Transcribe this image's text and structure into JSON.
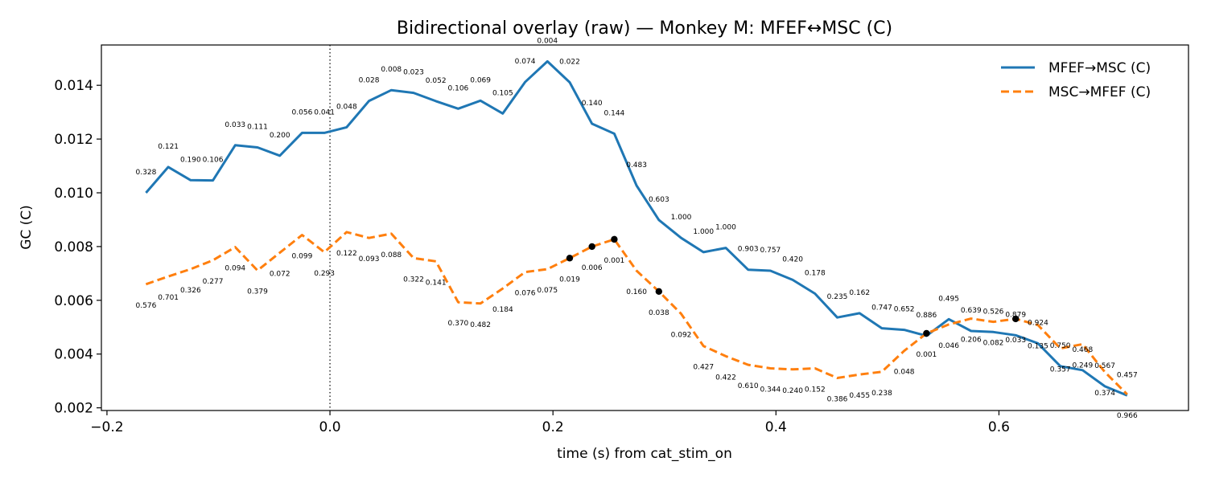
{
  "chart_data": {
    "type": "line",
    "title": "Bidirectional overlay (raw) — Monkey M: MFEF↔MSC (C)",
    "xlabel": "time (s) from cat_stim_on",
    "ylabel": "GC (C)",
    "xlim": [
      -0.205,
      0.77
    ],
    "ylim": [
      0.0019,
      0.0155
    ],
    "xticks": [
      -0.2,
      0.0,
      0.2,
      0.4,
      0.6
    ],
    "xtick_labels": [
      "−0.2",
      "0.0",
      "0.2",
      "0.4",
      "0.6"
    ],
    "yticks": [
      0.002,
      0.004,
      0.006,
      0.008,
      0.01,
      0.012,
      0.014
    ],
    "ytick_labels": [
      "0.002",
      "0.004",
      "0.006",
      "0.008",
      "0.010",
      "0.012",
      "0.014"
    ],
    "vline_x": 0.0,
    "legend_position": "top-right",
    "grid": false,
    "x": [
      -0.165,
      -0.145,
      -0.125,
      -0.105,
      -0.085,
      -0.065,
      -0.045,
      -0.025,
      -0.005,
      0.015,
      0.035,
      0.055,
      0.075,
      0.095,
      0.115,
      0.135,
      0.155,
      0.175,
      0.195,
      0.215,
      0.235,
      0.255,
      0.275,
      0.295,
      0.315,
      0.335,
      0.355,
      0.375,
      0.395,
      0.415,
      0.435,
      0.455,
      0.475,
      0.495,
      0.515,
      0.535,
      0.555,
      0.575,
      0.595,
      0.615,
      0.635,
      0.655,
      0.675,
      0.695,
      0.715
    ],
    "series": [
      {
        "name": "MFEF→MSC (C)",
        "color": "#1f77b4",
        "style": "solid",
        "values": [
          0.01,
          0.01096,
          0.01047,
          0.01046,
          0.01177,
          0.01169,
          0.01138,
          0.01223,
          0.01223,
          0.01244,
          0.01342,
          0.01382,
          0.01372,
          0.01341,
          0.01313,
          0.01343,
          0.01295,
          0.01412,
          0.01489,
          0.01411,
          0.01257,
          0.0122,
          0.01027,
          0.00899,
          0.00832,
          0.00779,
          0.00795,
          0.00714,
          0.0071,
          0.00676,
          0.00625,
          0.00536,
          0.00552,
          0.00496,
          0.0049,
          0.00468,
          0.0053,
          0.00486,
          0.00482,
          0.0047,
          0.0044,
          0.00355,
          0.0034,
          0.0028,
          0.00246
        ],
        "labels": [
          "0.328",
          "0.121",
          "0.190",
          "0.106",
          "0.033",
          "0.111",
          "0.200",
          "0.056",
          "0.041",
          "0.048",
          "0.028",
          "0.008",
          "0.023",
          "0.052",
          "0.106",
          "0.069",
          "0.105",
          "0.074",
          "0.004",
          "0.022",
          "0.140",
          "0.144",
          "0.483",
          "0.603",
          "1.000",
          "1.000",
          "1.000",
          "0.903",
          "0.757",
          "0.420",
          "0.178",
          "0.235",
          "0.162",
          "0.747",
          "0.652",
          "0.886",
          "0.495",
          "0.639",
          "0.526",
          "0.879",
          "0.924",
          "0.750",
          "0.468",
          "0.567",
          "0.457"
        ]
      },
      {
        "name": "MSC→MFEF (C)",
        "color": "#ff7f0e",
        "style": "dashed",
        "values": [
          0.0066,
          0.00689,
          0.00716,
          0.00749,
          0.00798,
          0.00711,
          0.00777,
          0.00843,
          0.00779,
          0.00854,
          0.00832,
          0.00848,
          0.00757,
          0.00745,
          0.00593,
          0.00588,
          0.00644,
          0.00705,
          0.00716,
          0.00757,
          0.008,
          0.00827,
          0.0071,
          0.00633,
          0.0055,
          0.0043,
          0.00392,
          0.0036,
          0.00347,
          0.00343,
          0.00347,
          0.00311,
          0.00324,
          0.00334,
          0.00412,
          0.00477,
          0.0051,
          0.00532,
          0.0052,
          0.00531,
          0.00508,
          0.00421,
          0.00437,
          0.00333,
          0.0025
        ],
        "labels": [
          "0.576",
          "0.701",
          "0.326",
          "0.277",
          "0.094",
          "0.379",
          "0.072",
          "0.099",
          "0.293",
          "0.122",
          "0.093",
          "0.088",
          "0.322",
          "0.141",
          "0.370",
          "0.482",
          "0.184",
          "0.076",
          "0.075",
          "0.019",
          "0.006",
          "0.001",
          "0.160",
          "0.038",
          "0.092",
          "0.427",
          "0.422",
          "0.610",
          "0.344",
          "0.240",
          "0.152",
          "0.386",
          "0.455",
          "0.238",
          "0.048",
          "0.001",
          "0.046",
          "0.206",
          "0.082",
          "0.033",
          "0.135",
          "0.357",
          "0.249",
          "0.374",
          "0.966"
        ]
      }
    ],
    "significant_points": [
      {
        "x": 0.215,
        "y": 0.00757
      },
      {
        "x": 0.235,
        "y": 0.008
      },
      {
        "x": 0.255,
        "y": 0.00827
      },
      {
        "x": 0.295,
        "y": 0.00633
      },
      {
        "x": 0.535,
        "y": 0.00477
      },
      {
        "x": 0.615,
        "y": 0.00531
      }
    ]
  }
}
